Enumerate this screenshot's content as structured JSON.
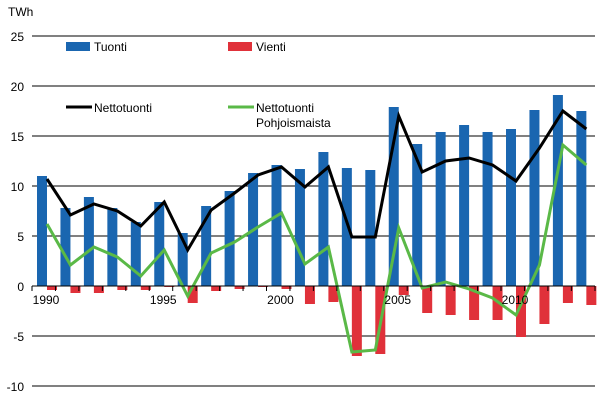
{
  "chart_data": {
    "type": "bar",
    "unit_label": "TWh",
    "categories": [
      1990,
      1991,
      1992,
      1993,
      1994,
      1995,
      1996,
      1997,
      1998,
      1999,
      2000,
      2001,
      2002,
      2003,
      2004,
      2005,
      2006,
      2007,
      2008,
      2009,
      2010,
      2011,
      2012,
      2013
    ],
    "x_tick_labels": [
      "1990",
      "1995",
      "2000",
      "2005",
      "2010"
    ],
    "y_ticks": [
      25,
      20,
      15,
      10,
      5,
      0,
      -5,
      -10
    ],
    "ylim": [
      -10,
      25
    ],
    "grid": true,
    "legend_placement": "top-left",
    "series": [
      {
        "name": "Tuonti",
        "kind": "bar",
        "color": "#1a66b0",
        "values": [
          11.0,
          7.8,
          8.9,
          7.8,
          6.4,
          8.4,
          5.3,
          8.0,
          9.5,
          11.3,
          12.1,
          11.7,
          13.4,
          11.8,
          11.6,
          17.9,
          14.2,
          15.4,
          16.1,
          15.4,
          15.7,
          17.6,
          19.1,
          17.5
        ]
      },
      {
        "name": "Vienti",
        "kind": "bar",
        "color": "#e0313a",
        "values": [
          -0.4,
          -0.7,
          -0.7,
          -0.4,
          -0.4,
          -0.1,
          -1.7,
          -0.5,
          -0.3,
          -0.1,
          -0.3,
          -1.8,
          -1.6,
          -7.0,
          -6.8,
          -0.9,
          -2.7,
          -2.9,
          -3.4,
          -3.4,
          -5.1,
          -3.8,
          -1.7,
          -1.9
        ]
      },
      {
        "name": "Nettotuonti",
        "kind": "line",
        "color": "#000000",
        "values": [
          10.7,
          7.1,
          8.2,
          7.5,
          6.0,
          8.4,
          3.6,
          7.6,
          9.3,
          11.1,
          11.9,
          9.9,
          11.9,
          4.9,
          4.9,
          17.0,
          11.4,
          12.5,
          12.8,
          12.1,
          10.5,
          13.8,
          17.5,
          15.7
        ]
      },
      {
        "name": "Nettotuonti Pohjoismaista",
        "kind": "line",
        "color": "#5ab947",
        "values": [
          6.2,
          2.1,
          3.9,
          2.9,
          1.0,
          3.6,
          -1.0,
          3.3,
          4.4,
          5.9,
          7.3,
          2.2,
          3.9,
          -6.6,
          -6.4,
          5.8,
          -0.2,
          0.4,
          -0.3,
          -1.2,
          -2.9,
          2.1,
          14.1,
          12.1
        ]
      }
    ],
    "legend": [
      {
        "label": "Tuonti"
      },
      {
        "label": "Vienti"
      },
      {
        "label": "Nettotuonti"
      },
      {
        "label_line1": "Nettotuonti",
        "label_line2": "Pohjoismaista"
      }
    ]
  }
}
